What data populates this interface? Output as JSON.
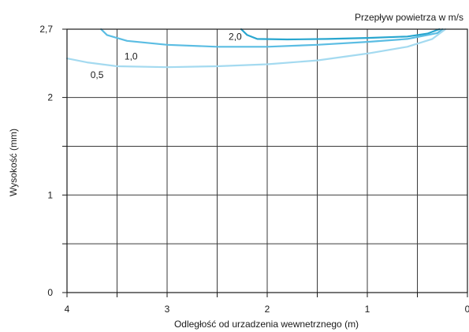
{
  "chart_data": {
    "type": "line",
    "title": "",
    "subtitle": "",
    "legend_title": "Przepływ powietrza w m/s",
    "xlabel": "Odległość od urzadzenia wewnetrznego (m)",
    "ylabel": "Wysokość (mm)",
    "xlim": [
      4,
      0
    ],
    "ylim": [
      0,
      2.7
    ],
    "x_ticks": [
      4,
      3.5,
      3,
      2.5,
      2,
      1.5,
      1,
      0.5,
      0
    ],
    "x_tick_labels": [
      {
        "value": 4,
        "label": "4"
      },
      {
        "value": 3,
        "label": "3"
      },
      {
        "value": 2,
        "label": "2"
      },
      {
        "value": 1,
        "label": "1"
      },
      {
        "value": 0,
        "label": "0"
      }
    ],
    "y_ticks": [
      0,
      0.5,
      1,
      1.5,
      2,
      2.7
    ],
    "y_tick_labels": [
      {
        "value": 0,
        "label": "0"
      },
      {
        "value": 1,
        "label": "1"
      },
      {
        "value": 2,
        "label": "2"
      },
      {
        "value": 2.7,
        "label": "2,7"
      }
    ],
    "grid": true,
    "series": [
      {
        "name": "2,0",
        "color": "#29a6cf",
        "label_at": {
          "x": 2.32,
          "y": 2.59
        },
        "points": [
          [
            2.26,
            2.7
          ],
          [
            2.2,
            2.64
          ],
          [
            2.1,
            2.6
          ],
          [
            1.8,
            2.595
          ],
          [
            1.4,
            2.6
          ],
          [
            1.0,
            2.61
          ],
          [
            0.6,
            2.625
          ],
          [
            0.4,
            2.655
          ],
          [
            0.28,
            2.7
          ]
        ]
      },
      {
        "name": "1,0",
        "color": "#5bbde3",
        "label_at": {
          "x": 3.36,
          "y": 2.39
        },
        "points": [
          [
            3.66,
            2.7
          ],
          [
            3.6,
            2.64
          ],
          [
            3.4,
            2.58
          ],
          [
            3.0,
            2.54
          ],
          [
            2.5,
            2.52
          ],
          [
            2.0,
            2.52
          ],
          [
            1.5,
            2.54
          ],
          [
            1.0,
            2.57
          ],
          [
            0.6,
            2.6
          ],
          [
            0.3,
            2.66
          ],
          [
            0.25,
            2.7
          ]
        ]
      },
      {
        "name": "0,5",
        "color": "#a4daf0",
        "label_at": {
          "x": 3.7,
          "y": 2.2
        },
        "points": [
          [
            4.0,
            2.4
          ],
          [
            3.8,
            2.36
          ],
          [
            3.5,
            2.32
          ],
          [
            3.0,
            2.31
          ],
          [
            2.5,
            2.32
          ],
          [
            2.0,
            2.34
          ],
          [
            1.5,
            2.38
          ],
          [
            1.0,
            2.45
          ],
          [
            0.6,
            2.52
          ],
          [
            0.35,
            2.6
          ],
          [
            0.22,
            2.7
          ]
        ]
      }
    ]
  }
}
